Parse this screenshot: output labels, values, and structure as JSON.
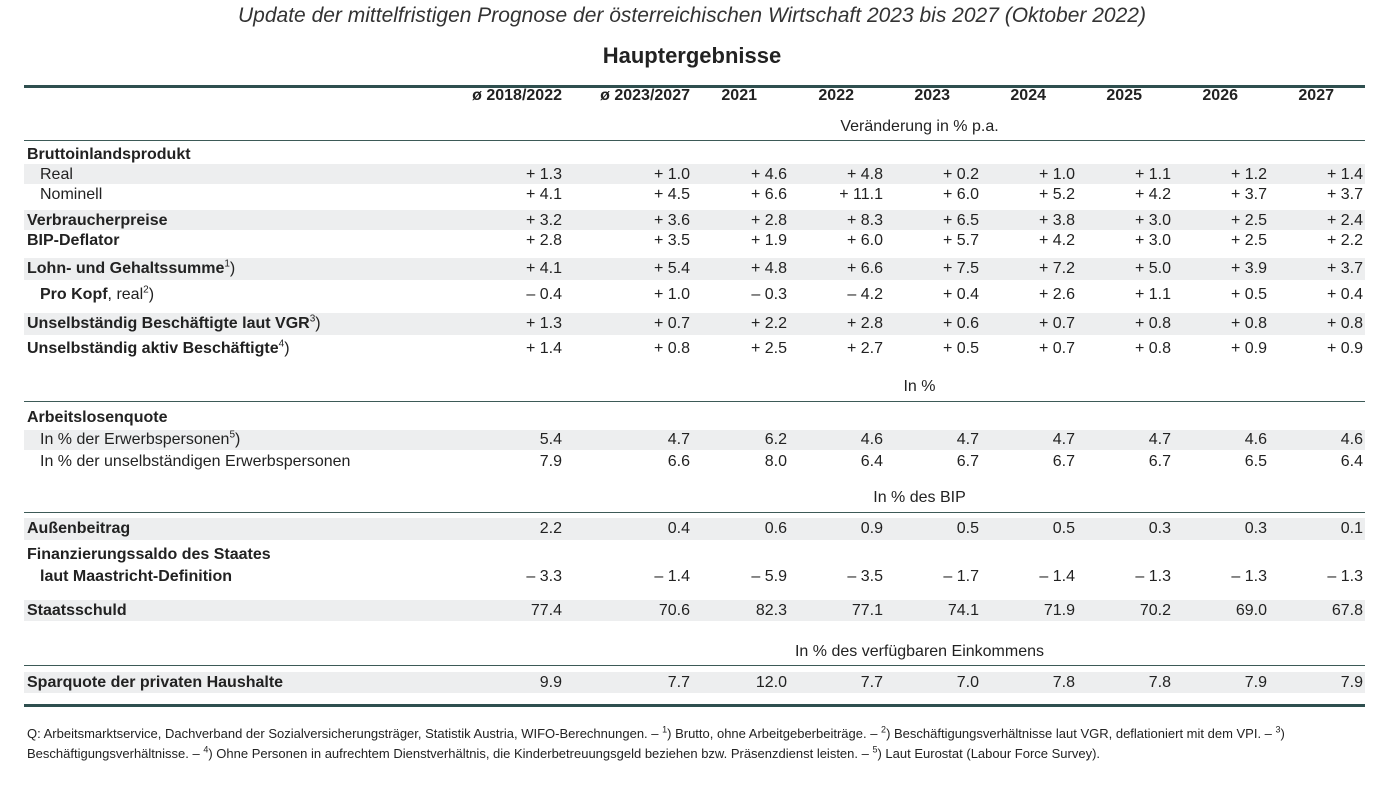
{
  "title": "Update der mittelfristigen Prognose der österreichischen Wirtschaft 2023 bis 2027 (Oktober 2022)",
  "subtitle": "Hauptergebnisse",
  "columns": [
    "ø 2018/2022",
    "ø 2023/2027",
    "2021",
    "2022",
    "2023",
    "2024",
    "2025",
    "2026",
    "2027"
  ],
  "units": {
    "change": "Veränderung in % p.a.",
    "percent": "In %",
    "gdp": "In % des BIP",
    "income": "In % des verfügbaren Einkommens"
  },
  "rows": {
    "bip": {
      "label": "Bruttoinlandsprodukt"
    },
    "real": {
      "label": "Real",
      "values": [
        "+ 1.3",
        "+ 1.0",
        "+ 4.6",
        "+ 4.8",
        "+ 0.2",
        "+ 1.0",
        "+ 1.1",
        "+ 1.2",
        "+ 1.4"
      ]
    },
    "nominell": {
      "label": "Nominell",
      "values": [
        "+ 4.1",
        "+ 4.5",
        "+ 6.6",
        "+ 11.1",
        "+ 6.0",
        "+ 5.2",
        "+ 4.2",
        "+ 3.7",
        "+ 3.7"
      ]
    },
    "vpi": {
      "label": "Verbraucherpreise",
      "values": [
        "+ 3.2",
        "+ 3.6",
        "+ 2.8",
        "+ 8.3",
        "+ 6.5",
        "+ 3.8",
        "+ 3.0",
        "+ 2.5",
        "+ 2.4"
      ]
    },
    "deflator": {
      "label": "BIP-Deflator",
      "values": [
        "+ 2.8",
        "+ 3.5",
        "+ 1.9",
        "+ 6.0",
        "+ 5.7",
        "+ 4.2",
        "+ 3.0",
        "+ 2.5",
        "+ 2.2"
      ]
    },
    "lohn": {
      "label": "Lohn- und Gehaltssumme",
      "fn": "1",
      "suffix": ")",
      "values": [
        "+ 4.1",
        "+ 5.4",
        "+ 4.8",
        "+ 6.6",
        "+ 7.5",
        "+ 7.2",
        "+ 5.0",
        "+ 3.9",
        "+ 3.7"
      ]
    },
    "prokopf": {
      "label": "Pro Kopf",
      "label2": ", real",
      "fn": "2",
      "suffix": ")",
      "values": [
        "– 0.4",
        "+ 1.0",
        "– 0.3",
        "– 4.2",
        "+ 0.4",
        "+ 2.6",
        "+ 1.1",
        "+ 0.5",
        "+ 0.4"
      ]
    },
    "vgr": {
      "label": "Unselbständig Beschäftigte laut VGR",
      "fn": "3",
      "suffix": ")",
      "values": [
        "+ 1.3",
        "+ 0.7",
        "+ 2.2",
        "+ 2.8",
        "+ 0.6",
        "+ 0.7",
        "+ 0.8",
        "+ 0.8",
        "+ 0.8"
      ]
    },
    "aktiv": {
      "label": "Unselbständig aktiv Beschäftigte",
      "fn": "4",
      "suffix": ")",
      "values": [
        "+ 1.4",
        "+ 0.8",
        "+ 2.5",
        "+ 2.7",
        "+ 0.5",
        "+ 0.7",
        "+ 0.8",
        "+ 0.9",
        "+ 0.9"
      ]
    },
    "alq": {
      "label": "Arbeitslosenquote"
    },
    "erwerb": {
      "label": "In % der Erwerbspersonen",
      "fn": "5",
      "suffix": ")",
      "values": [
        "5.4",
        "4.7",
        "6.2",
        "4.6",
        "4.7",
        "4.7",
        "4.7",
        "4.6",
        "4.6"
      ]
    },
    "unselbst": {
      "label": "In % der unselbständigen Erwerbspersonen",
      "values": [
        "7.9",
        "6.6",
        "8.0",
        "6.4",
        "6.7",
        "6.7",
        "6.7",
        "6.5",
        "6.4"
      ]
    },
    "aussen": {
      "label": "Außenbeitrag",
      "values": [
        "2.2",
        "0.4",
        "0.6",
        "0.9",
        "0.5",
        "0.5",
        "0.3",
        "0.3",
        "0.1"
      ]
    },
    "fin1": {
      "label": "Finanzierungssaldo des Staates"
    },
    "fin2": {
      "label": "laut Maastricht-Definition",
      "values": [
        "– 3.3",
        "– 1.4",
        "– 5.9",
        "– 3.5",
        "– 1.7",
        "– 1.4",
        "– 1.3",
        "– 1.3",
        "– 1.3"
      ]
    },
    "schuld": {
      "label": "Staatsschuld",
      "values": [
        "77.4",
        "70.6",
        "82.3",
        "77.1",
        "74.1",
        "71.9",
        "70.2",
        "69.0",
        "67.8"
      ]
    },
    "spar": {
      "label": "Sparquote der privaten Haushalte",
      "values": [
        "9.9",
        "7.7",
        "12.0",
        "7.7",
        "7.0",
        "7.8",
        "7.8",
        "7.9",
        "7.9"
      ]
    }
  },
  "footnote": {
    "p1": "Q: Arbeitsmarktservice, Dachverband der Sozialversicherungsträger, Statistik Austria, WIFO-Berechnungen. – ",
    "f1": "1",
    "p2": ") Brutto, ohne Arbeitgeberbeiträge. – ",
    "f2": "2",
    "p3": ") Beschäftigungsverhältnisse laut VGR, deflationiert mit dem VPI. – ",
    "f3": "3",
    "p4": ") Beschäftigungsverhältnisse. – ",
    "f4": "4",
    "p5": ") Ohne Personen in aufrechtem Dienstverhältnis, die Kinderbetreuungsgeld beziehen bzw. Präsenzdienst leisten. – ",
    "f5": "5",
    "p6": ") Laut Eurostat (Labour Force Survey)."
  }
}
